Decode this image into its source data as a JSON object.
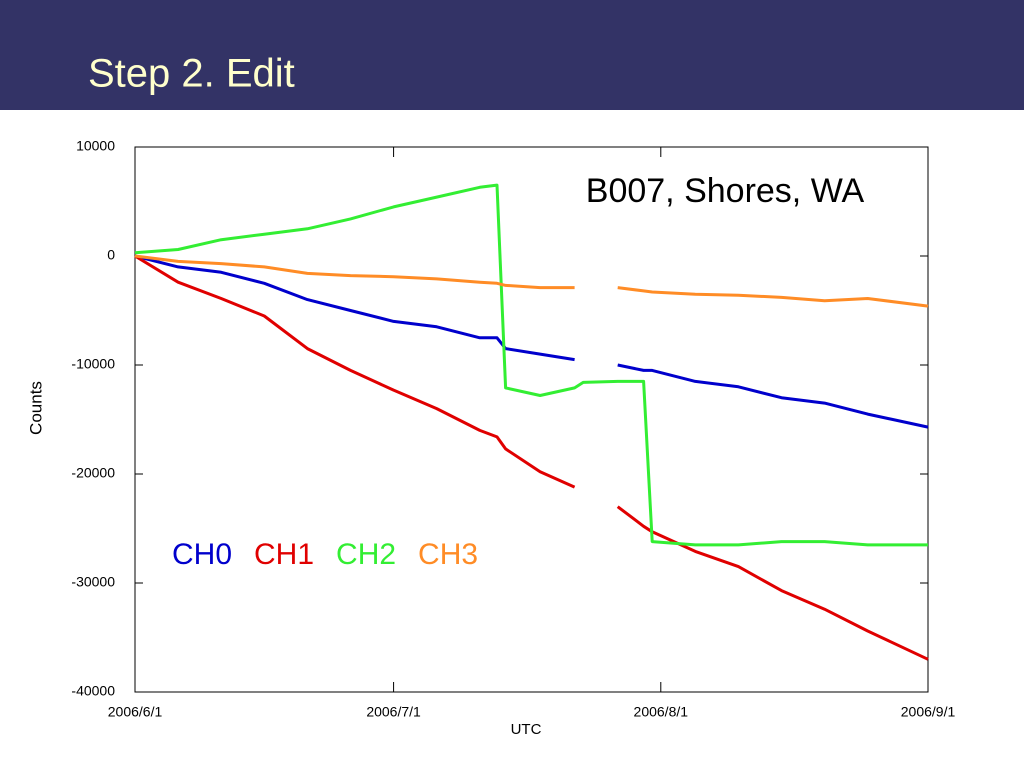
{
  "slide": {
    "title": "Step 2. Edit"
  },
  "chart_data": {
    "type": "line",
    "annotation": "B007, Shores, WA",
    "xlabel": "UTC",
    "ylabel": "Counts",
    "x": [
      "2006/6/1",
      "2006/6/6",
      "2006/6/11",
      "2006/6/16",
      "2006/6/21",
      "2006/6/26",
      "2006/7/1",
      "2006/7/6",
      "2006/7/11",
      "2006/7/13",
      "2006/7/14",
      "2006/7/18",
      "2006/7/22",
      "2006/7/23",
      "2006/7/27",
      "2006/7/30",
      "2006/7/31",
      "2006/8/5",
      "2006/8/10",
      "2006/8/15",
      "2006/8/20",
      "2006/8/25",
      "2006/9/1"
    ],
    "series": [
      {
        "name": "CH0",
        "color": "#0000cc",
        "values": [
          0,
          -1000,
          -1500,
          -2500,
          -4000,
          -5000,
          -6000,
          -6500,
          -7500,
          -7500,
          -8500,
          -9000,
          -9500,
          null,
          -10000,
          -10500,
          -10500,
          -11500,
          -12000,
          -13000,
          -13500,
          -14500,
          -15700
        ]
      },
      {
        "name": "CH1",
        "color": "#e00000",
        "values": [
          0,
          -2400,
          -3900,
          -5500,
          -8500,
          -10500,
          -12300,
          -14000,
          -16000,
          -16600,
          -17700,
          -19800,
          -21200,
          null,
          -23000,
          -24800,
          -25300,
          -27100,
          -28500,
          -30700,
          -32400,
          -34400,
          -37000
        ]
      },
      {
        "name": "CH2",
        "color": "#33ee33",
        "values": [
          300,
          600,
          1500,
          2000,
          2500,
          3400,
          4500,
          5400,
          6300,
          6500,
          -12100,
          -12800,
          -12100,
          -11600,
          -11500,
          -11500,
          -26200,
          -26500,
          -26500,
          -26200,
          -26200,
          -26500,
          -26500
        ]
      },
      {
        "name": "CH3",
        "color": "#ff8c26",
        "values": [
          0,
          -500,
          -700,
          -1000,
          -1600,
          -1800,
          -1900,
          -2100,
          -2400,
          -2500,
          -2700,
          -2900,
          -2900,
          null,
          -2900,
          -3200,
          -3300,
          -3500,
          -3600,
          -3800,
          -4100,
          -3900,
          -4600
        ]
      }
    ],
    "xlim": [
      "2006/6/1",
      "2006/9/1"
    ],
    "xticks": [
      "2006/6/1",
      "2006/7/1",
      "2006/8/1",
      "2006/9/1"
    ],
    "ylim": [
      -40000,
      10000
    ],
    "yticks": [
      10000,
      0,
      -10000,
      -20000,
      -30000,
      -40000
    ]
  }
}
